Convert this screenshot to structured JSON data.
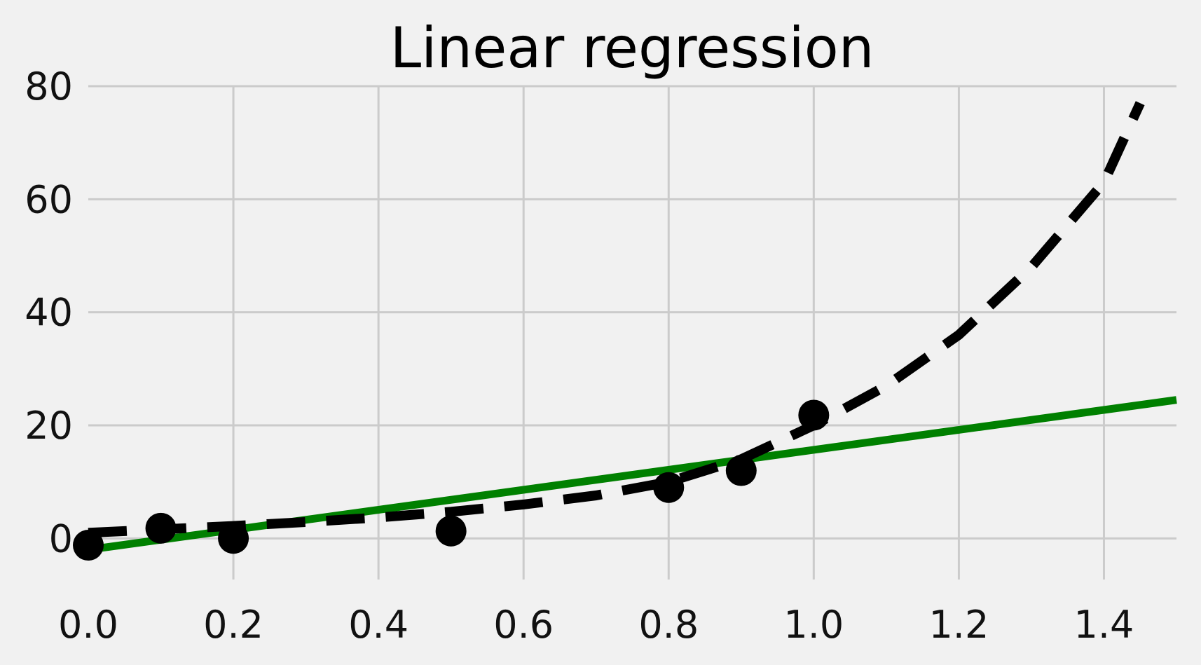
{
  "chart_data": {
    "type": "scatter",
    "title": "Linear regression",
    "xlabel": "",
    "ylabel": "",
    "xlim": [
      0.0,
      1.5
    ],
    "ylim": [
      -10,
      80
    ],
    "grid": true,
    "x_ticks": [
      0.0,
      0.2,
      0.4,
      0.6,
      0.8,
      1.0,
      1.2,
      1.4
    ],
    "x_tick_labels": [
      "0.0",
      "0.2",
      "0.4",
      "0.6",
      "0.8",
      "1.0",
      "1.2",
      "1.4"
    ],
    "y_ticks": [
      0,
      20,
      40,
      60,
      80
    ],
    "y_tick_labels": [
      "0",
      "20",
      "40",
      "60",
      "80"
    ],
    "points": {
      "x": [
        0.0,
        0.1,
        0.2,
        0.5,
        0.8,
        0.9,
        1.0
      ],
      "y": [
        -1.2,
        1.8,
        0.0,
        1.3,
        9.0,
        12.0,
        21.8
      ],
      "color": "#000000"
    },
    "series": [
      {
        "style": "solid",
        "color": "#008000",
        "x": [
          0.0,
          1.5
        ],
        "y": [
          -2.0,
          24.5
        ]
      },
      {
        "style": "dashed",
        "color": "#000000",
        "x": [
          0.0,
          0.1,
          0.2,
          0.3,
          0.4,
          0.5,
          0.6,
          0.7,
          0.8,
          0.9,
          1.0,
          1.1,
          1.2,
          1.3,
          1.4,
          1.45
        ],
        "y": [
          1.0,
          1.6,
          2.2,
          2.9,
          3.7,
          4.7,
          6.0,
          7.6,
          10.0,
          14.0,
          20.0,
          27.0,
          36.0,
          48.0,
          63.0,
          77.0
        ]
      }
    ]
  }
}
